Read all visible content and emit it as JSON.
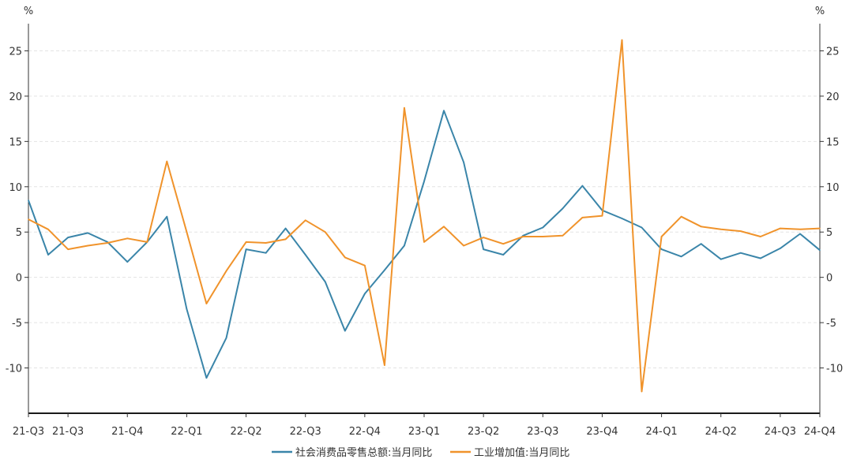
{
  "chart_data": {
    "type": "line",
    "title": "",
    "y_unit_left": "%",
    "y_unit_right": "%",
    "ylim": [
      -15,
      28
    ],
    "yticks": [
      -10,
      -5,
      0,
      5,
      10,
      15,
      20,
      25
    ],
    "grid": true,
    "legend_position": "bottom",
    "x_tick_labels": [
      "21-Q3",
      "21-Q3",
      "21-Q4",
      "22-Q1",
      "22-Q2",
      "22-Q3",
      "22-Q4",
      "23-Q1",
      "23-Q2",
      "23-Q3",
      "23-Q4",
      "24-Q1",
      "24-Q2",
      "24-Q3",
      "24-Q4"
    ],
    "x_tick_months": [
      0,
      2,
      5,
      8,
      11,
      14,
      17,
      20,
      23,
      26,
      29,
      32,
      35,
      38,
      40
    ],
    "series": [
      {
        "name": "社会消费品零售总额:当月同比",
        "color": "#3a85a9",
        "values": [
          8.5,
          2.5,
          4.4,
          4.9,
          3.9,
          1.7,
          3.9,
          6.7,
          -3.5,
          -11.1,
          -6.7,
          3.1,
          2.7,
          5.4,
          2.5,
          -0.5,
          -5.9,
          -1.8,
          0.8,
          3.5,
          10.6,
          18.4,
          12.7,
          3.1,
          2.5,
          4.6,
          5.5,
          7.6,
          10.1,
          7.4,
          6.5,
          5.5,
          3.1,
          2.3,
          3.7,
          2.0,
          2.7,
          2.1,
          3.2,
          4.8,
          3.0
        ]
      },
      {
        "name": "工业增加值:当月同比",
        "color": "#f0932b",
        "values": [
          6.4,
          5.3,
          3.1,
          3.5,
          3.8,
          4.3,
          3.9,
          12.8,
          5.0,
          -2.9,
          0.7,
          3.9,
          3.8,
          4.2,
          6.3,
          5.0,
          2.2,
          1.3,
          -9.7,
          18.7,
          3.9,
          5.6,
          3.5,
          4.4,
          3.7,
          4.5,
          4.5,
          4.6,
          6.6,
          6.8,
          26.2,
          -12.6,
          4.5,
          6.7,
          5.6,
          5.3,
          5.1,
          4.5,
          5.4,
          5.3,
          5.4
        ]
      }
    ]
  }
}
